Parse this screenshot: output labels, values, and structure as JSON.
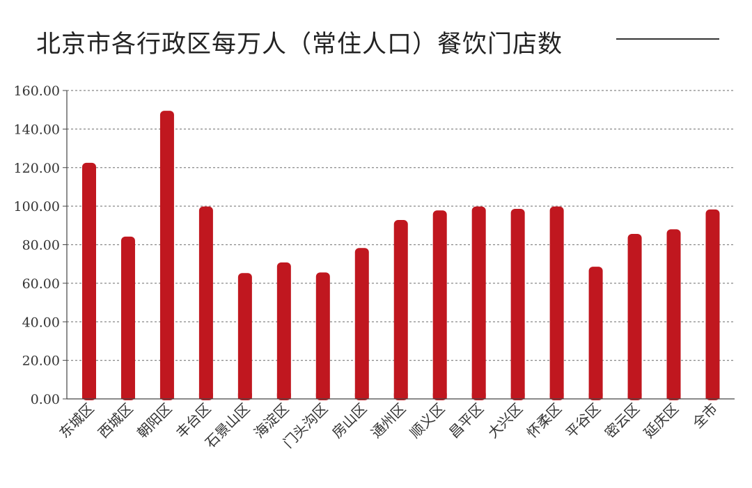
{
  "chart_data": {
    "type": "bar",
    "title": "北京市各行政区每万人（常住人口）餐饮门店数",
    "xlabel": "",
    "ylabel": "",
    "categories": [
      "东城区",
      "西城区",
      "朝阳区",
      "丰台区",
      "石景山区",
      "海淀区",
      "门头沟区",
      "房山区",
      "通州区",
      "顺义区",
      "昌平区",
      "大兴区",
      "怀柔区",
      "平谷区",
      "密云区",
      "延庆区",
      "全市"
    ],
    "values": [
      122.5,
      84.2,
      149.5,
      99.8,
      65.3,
      70.8,
      65.6,
      78.3,
      92.8,
      97.8,
      99.8,
      98.6,
      99.8,
      68.6,
      85.6,
      88.0,
      98.3
    ],
    "ylim": [
      0,
      160
    ],
    "yticks": [
      "0.00",
      "20.00",
      "40.00",
      "60.00",
      "80.00",
      "100.00",
      "120.00",
      "140.00",
      "160.00"
    ],
    "grid": true,
    "colors": {
      "bar": "#c0171f",
      "grid": "#888888",
      "axis": "#444444"
    }
  }
}
